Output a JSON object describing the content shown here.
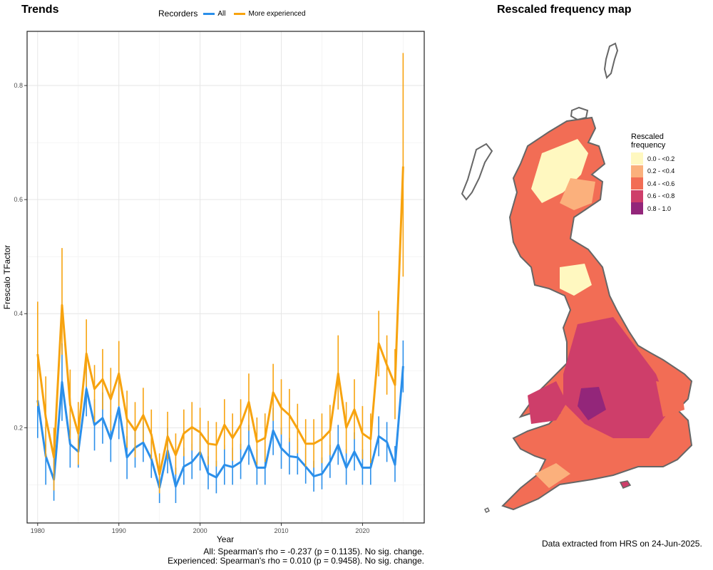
{
  "left_title": "Trends",
  "map_title": "Rescaled frequency map",
  "legend": {
    "title": "Recorders",
    "all_label": "All",
    "exp_label": "More experienced",
    "all_color": "#2b8fea",
    "exp_color": "#f7a30f"
  },
  "stats": {
    "all": "All: Spearman's rho = -0.237 (p = 0.1135). No sig. change.",
    "experienced": "Experienced: Spearman's rho = 0.010 (p = 0.9458). No sig. change."
  },
  "map_legend": {
    "title": "Rescaled frequency",
    "bins": [
      {
        "label": "0.0 - <0.2",
        "color": "#fff8c0"
      },
      {
        "label": "0.2 - <0.4",
        "color": "#fbb07c"
      },
      {
        "label": "0.4 - <0.6",
        "color": "#f26d55"
      },
      {
        "label": "0.6 - <0.8",
        "color": "#ce3e6a"
      },
      {
        "label": "0.8 - 1.0",
        "color": "#93267a"
      }
    ]
  },
  "footnote": "Data extracted from HRS on 24-Jun-2025.",
  "chart_data": {
    "type": "line",
    "title": "Trends",
    "xlabel": "Year",
    "ylabel": "Frescalo TFactor",
    "xlim": [
      1978.7,
      2027.6
    ],
    "ylim": [
      0.033,
      0.895
    ],
    "xticks": [
      1980,
      1990,
      2000,
      2010,
      2020
    ],
    "yticks": [
      0.2,
      0.4,
      0.6,
      0.8
    ],
    "grid": true,
    "legend_position": "top",
    "x": [
      1980,
      1981,
      1982,
      1983,
      1984,
      1985,
      1986,
      1987,
      1988,
      1989,
      1990,
      1991,
      1992,
      1993,
      1994,
      1995,
      1996,
      1997,
      1998,
      1999,
      2000,
      2001,
      2002,
      2003,
      2004,
      2005,
      2006,
      2007,
      2008,
      2009,
      2010,
      2011,
      2012,
      2013,
      2014,
      2015,
      2016,
      2017,
      2018,
      2019,
      2020,
      2021,
      2022,
      2023,
      2024,
      2025
    ],
    "series": [
      {
        "name": "All",
        "values": [
          0.248,
          0.15,
          0.109,
          0.28,
          0.171,
          0.158,
          0.268,
          0.205,
          0.217,
          0.18,
          0.235,
          0.148,
          0.165,
          0.174,
          0.145,
          0.095,
          0.16,
          0.097,
          0.132,
          0.14,
          0.157,
          0.12,
          0.113,
          0.135,
          0.131,
          0.14,
          0.169,
          0.13,
          0.13,
          0.195,
          0.164,
          0.15,
          0.148,
          0.132,
          0.115,
          0.119,
          0.14,
          0.17,
          0.13,
          0.158,
          0.13,
          0.13,
          0.185,
          0.175,
          0.135,
          0.308
        ],
        "lower": [
          0.182,
          0.1,
          0.072,
          0.212,
          0.13,
          0.13,
          0.22,
          0.16,
          0.172,
          0.14,
          0.18,
          0.11,
          0.13,
          0.14,
          0.112,
          0.068,
          0.12,
          0.068,
          0.1,
          0.11,
          0.125,
          0.092,
          0.085,
          0.1,
          0.1,
          0.11,
          0.135,
          0.1,
          0.1,
          0.152,
          0.128,
          0.118,
          0.118,
          0.102,
          0.088,
          0.092,
          0.112,
          0.135,
          0.1,
          0.125,
          0.1,
          0.1,
          0.15,
          0.14,
          0.105,
          0.262
        ],
        "upper": [
          0.315,
          0.2,
          0.15,
          0.348,
          0.215,
          0.19,
          0.315,
          0.25,
          0.262,
          0.222,
          0.29,
          0.185,
          0.2,
          0.21,
          0.18,
          0.125,
          0.2,
          0.13,
          0.165,
          0.172,
          0.19,
          0.15,
          0.142,
          0.17,
          0.165,
          0.172,
          0.205,
          0.162,
          0.162,
          0.235,
          0.2,
          0.182,
          0.18,
          0.164,
          0.142,
          0.148,
          0.17,
          0.205,
          0.162,
          0.192,
          0.162,
          0.162,
          0.22,
          0.21,
          0.168,
          0.353
        ]
      },
      {
        "name": "More experienced",
        "values": [
          0.329,
          0.218,
          0.148,
          0.415,
          0.24,
          0.19,
          0.33,
          0.268,
          0.285,
          0.25,
          0.295,
          0.215,
          0.195,
          0.222,
          0.188,
          0.118,
          0.185,
          0.152,
          0.19,
          0.201,
          0.192,
          0.172,
          0.17,
          0.205,
          0.182,
          0.205,
          0.245,
          0.175,
          0.182,
          0.262,
          0.235,
          0.222,
          0.198,
          0.172,
          0.172,
          0.18,
          0.195,
          0.295,
          0.2,
          0.232,
          0.19,
          0.18,
          0.348,
          0.31,
          0.275,
          0.658
        ],
        "lower": [
          0.238,
          0.148,
          0.09,
          0.328,
          0.18,
          0.135,
          0.272,
          0.21,
          0.232,
          0.195,
          0.238,
          0.165,
          0.148,
          0.175,
          0.145,
          0.085,
          0.145,
          0.118,
          0.15,
          0.16,
          0.152,
          0.135,
          0.132,
          0.162,
          0.142,
          0.162,
          0.195,
          0.135,
          0.14,
          0.212,
          0.188,
          0.175,
          0.155,
          0.132,
          0.13,
          0.138,
          0.152,
          0.232,
          0.155,
          0.18,
          0.145,
          0.138,
          0.29,
          0.258,
          0.215,
          0.465
        ],
        "upper": [
          0.421,
          0.29,
          0.2,
          0.515,
          0.302,
          0.245,
          0.39,
          0.31,
          0.338,
          0.305,
          0.352,
          0.265,
          0.245,
          0.27,
          0.232,
          0.155,
          0.228,
          0.19,
          0.232,
          0.245,
          0.235,
          0.212,
          0.21,
          0.25,
          0.225,
          0.25,
          0.295,
          0.218,
          0.225,
          0.312,
          0.285,
          0.268,
          0.242,
          0.215,
          0.215,
          0.225,
          0.24,
          0.362,
          0.245,
          0.285,
          0.238,
          0.225,
          0.405,
          0.362,
          0.338,
          0.857
        ]
      }
    ]
  }
}
